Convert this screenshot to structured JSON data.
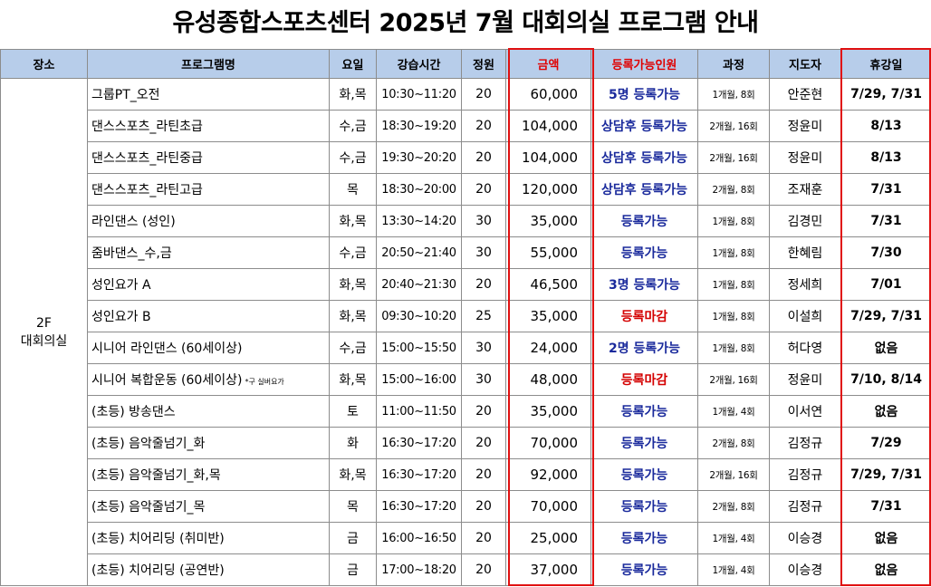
{
  "title": "유성종합스포츠센터 2025년 7월 대회의실 프로그램 안내",
  "headers": {
    "location": "장소",
    "program": "프로그램명",
    "day": "요일",
    "time": "강습시간",
    "capacity": "정원",
    "price": "금액",
    "available": "등록가능인원",
    "course": "과정",
    "instructor": "지도자",
    "closure": "휴강일"
  },
  "location": {
    "line1": "2F",
    "line2": "대회의실"
  },
  "colors": {
    "header_bg": "#b7cdea",
    "highlight_border": "#e01010",
    "status_open": "#1a2a9c",
    "status_closed": "#d40000"
  },
  "rows": [
    {
      "program": "그룹PT_오전",
      "note": "",
      "day": "화,목",
      "time": "10:30~11:20",
      "capacity": "20",
      "price": "60,000",
      "status": "5명 등록가능",
      "status_type": "open",
      "course": "1개월, 8회",
      "instructor": "안준현",
      "closure": "7/29, 7/31"
    },
    {
      "program": "댄스스포츠_라틴초급",
      "note": "",
      "day": "수,금",
      "time": "18:30~19:20",
      "capacity": "20",
      "price": "104,000",
      "status": "상담후 등록가능",
      "status_type": "open",
      "course": "2개월, 16회",
      "instructor": "정윤미",
      "closure": "8/13"
    },
    {
      "program": "댄스스포츠_라틴중급",
      "note": "",
      "day": "수,금",
      "time": "19:30~20:20",
      "capacity": "20",
      "price": "104,000",
      "status": "상담후 등록가능",
      "status_type": "open",
      "course": "2개월, 16회",
      "instructor": "정윤미",
      "closure": "8/13"
    },
    {
      "program": "댄스스포츠_라틴고급",
      "note": "",
      "day": "목",
      "time": "18:30~20:00",
      "capacity": "20",
      "price": "120,000",
      "status": "상담후 등록가능",
      "status_type": "open",
      "course": "2개월, 8회",
      "instructor": "조재훈",
      "closure": "7/31"
    },
    {
      "program": "라인댄스 (성인)",
      "note": "",
      "day": "화,목",
      "time": "13:30~14:20",
      "capacity": "30",
      "price": "35,000",
      "status": "등록가능",
      "status_type": "open",
      "course": "1개월, 8회",
      "instructor": "김경민",
      "closure": "7/31"
    },
    {
      "program": "줌바댄스_수,금",
      "note": "",
      "day": "수,금",
      "time": "20:50~21:40",
      "capacity": "30",
      "price": "55,000",
      "status": "등록가능",
      "status_type": "open",
      "course": "1개월, 8회",
      "instructor": "한혜림",
      "closure": "7/30"
    },
    {
      "program": "성인요가 A",
      "note": "",
      "day": "화,목",
      "time": "20:40~21:30",
      "capacity": "20",
      "price": "46,500",
      "status": "3명 등록가능",
      "status_type": "open",
      "course": "1개월, 8회",
      "instructor": "정세희",
      "closure": "7/01"
    },
    {
      "program": "성인요가 B",
      "note": "",
      "day": "화,목",
      "time": "09:30~10:20",
      "capacity": "25",
      "price": "35,000",
      "status": "등록마감",
      "status_type": "closed",
      "course": "1개월, 8회",
      "instructor": "이설희",
      "closure": "7/29, 7/31"
    },
    {
      "program": "시니어 라인댄스 (60세이상)",
      "note": "",
      "day": "수,금",
      "time": "15:00~15:50",
      "capacity": "30",
      "price": "24,000",
      "status": "2명 등록가능",
      "status_type": "open",
      "course": "1개월, 8회",
      "instructor": "허다영",
      "closure": "없음"
    },
    {
      "program": "시니어 복합운동 (60세이상)",
      "note": "*구 실버요가",
      "day": "화,목",
      "time": "15:00~16:00",
      "capacity": "30",
      "price": "48,000",
      "status": "등록마감",
      "status_type": "closed",
      "course": "2개월, 16회",
      "instructor": "정윤미",
      "closure": "7/10, 8/14"
    },
    {
      "program": "(초등) 방송댄스",
      "note": "",
      "day": "토",
      "time": "11:00~11:50",
      "capacity": "20",
      "price": "35,000",
      "status": "등록가능",
      "status_type": "open",
      "course": "1개월, 4회",
      "instructor": "이서연",
      "closure": "없음"
    },
    {
      "program": "(초등) 음악줄넘기_화",
      "note": "",
      "day": "화",
      "time": "16:30~17:20",
      "capacity": "20",
      "price": "70,000",
      "status": "등록가능",
      "status_type": "open",
      "course": "2개월, 8회",
      "instructor": "김정규",
      "closure": "7/29"
    },
    {
      "program": "(초등) 음악줄넘기_화,목",
      "note": "",
      "day": "화,목",
      "time": "16:30~17:20",
      "capacity": "20",
      "price": "92,000",
      "status": "등록가능",
      "status_type": "open",
      "course": "2개월, 16회",
      "instructor": "김정규",
      "closure": "7/29, 7/31"
    },
    {
      "program": "(초등) 음악줄넘기_목",
      "note": "",
      "day": "목",
      "time": "16:30~17:20",
      "capacity": "20",
      "price": "70,000",
      "status": "등록가능",
      "status_type": "open",
      "course": "2개월, 8회",
      "instructor": "김정규",
      "closure": "7/31"
    },
    {
      "program": "(초등) 치어리딩 (취미반)",
      "note": "",
      "day": "금",
      "time": "16:00~16:50",
      "capacity": "20",
      "price": "25,000",
      "status": "등록가능",
      "status_type": "open",
      "course": "1개월, 4회",
      "instructor": "이승경",
      "closure": "없음"
    },
    {
      "program": "(초등) 치어리딩 (공연반)",
      "note": "",
      "day": "금",
      "time": "17:00~18:20",
      "capacity": "20",
      "price": "37,000",
      "status": "등록가능",
      "status_type": "open",
      "course": "1개월, 4회",
      "instructor": "이승경",
      "closure": "없음"
    }
  ]
}
